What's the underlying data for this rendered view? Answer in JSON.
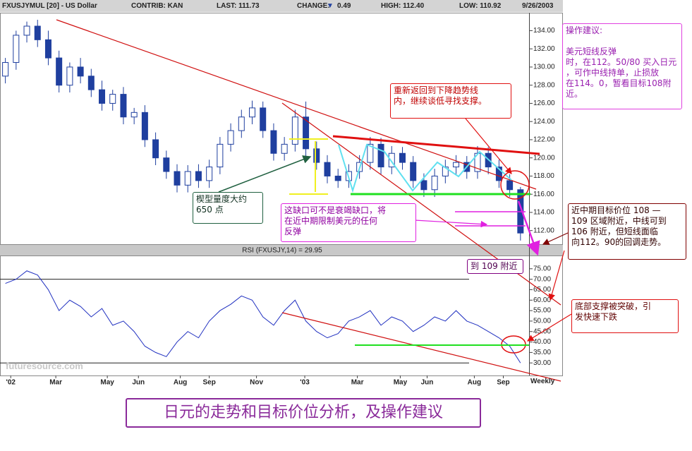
{
  "header": {
    "symbol": "FXUSJYMUL [20] - US Dollar",
    "contrib": "CONTRIB: KAN",
    "last": "LAST: 111.73",
    "change_label": "CHANGE:",
    "change_value": "0.49",
    "high": "HIGH: 112.40",
    "low": "LOW: 110.92",
    "date": "9/26/2003"
  },
  "chart_data": [
    {
      "type": "candlestick",
      "color": "#1f3f9f",
      "open": [
        129,
        130.5,
        133.5,
        134.5,
        133,
        131,
        128,
        130,
        129,
        127.5,
        126,
        127,
        124.5,
        125,
        122,
        120,
        118.5,
        117,
        118.5,
        117.5,
        119,
        121.5,
        123,
        124.5,
        125.5,
        123,
        120.5,
        121.5,
        124.5,
        121,
        119.5,
        118,
        117.5,
        118.5,
        119.5,
        121.5,
        119,
        120.5,
        119.5,
        117.5,
        116.5,
        118,
        119,
        119.5,
        118.5,
        120.5,
        119,
        117.5,
        116.5
      ],
      "high": [
        131,
        134,
        135,
        135.2,
        134,
        131.8,
        130.5,
        131,
        129.8,
        128.5,
        127.5,
        127.8,
        125.5,
        125.8,
        122.8,
        120.8,
        119.3,
        119.2,
        119.3,
        119.8,
        122.3,
        123.8,
        125.3,
        126.3,
        126.2,
        123.8,
        122.3,
        125.3,
        126.2,
        121.8,
        120.3,
        118.8,
        119.3,
        120.3,
        122.3,
        122.2,
        121.3,
        121.2,
        120.2,
        118.3,
        118.8,
        119.8,
        120.3,
        120.2,
        121.3,
        121.2,
        119.8,
        118.2,
        116.8
      ],
      "low": [
        128.2,
        129.7,
        132.7,
        132.2,
        130.2,
        127.2,
        127.2,
        128.2,
        126.7,
        125.2,
        125.2,
        123.7,
        123.7,
        121.2,
        119.2,
        117.7,
        116.2,
        116.2,
        116.7,
        116.7,
        118.2,
        120.7,
        122.2,
        123.7,
        122.2,
        119.7,
        119.7,
        120.7,
        120.2,
        118.7,
        117.2,
        116.7,
        116.7,
        117.7,
        118.7,
        118.2,
        118.2,
        118.7,
        116.7,
        115.7,
        115.7,
        117.2,
        118.2,
        117.7,
        117.7,
        118.2,
        116.7,
        115.7,
        110.9
      ],
      "close": [
        130.5,
        133.5,
        134.5,
        133,
        131,
        128,
        130,
        129,
        127.5,
        126,
        127,
        124.5,
        125,
        122,
        120,
        118.5,
        117,
        118.5,
        117.5,
        119,
        121.5,
        123,
        124.5,
        125.5,
        123,
        120.5,
        121.5,
        124.5,
        121,
        119.5,
        118,
        117.5,
        118.5,
        119.5,
        121.5,
        119,
        120.5,
        119.5,
        117.5,
        116.5,
        118,
        119,
        119.5,
        118.5,
        120.5,
        119,
        117.5,
        116.5,
        111.73
      ],
      "xlim": [
        -0.5,
        48.8
      ],
      "ylim": [
        110.5,
        135.9
      ],
      "yticks": [
        {
          "value": 112,
          "label": "112.00"
        },
        {
          "value": 114,
          "label": "114.00"
        },
        {
          "value": 116,
          "label": "116.00"
        },
        {
          "value": 118,
          "label": "118.00"
        },
        {
          "value": 120,
          "label": "120.00"
        },
        {
          "value": 122,
          "label": "122.00"
        },
        {
          "value": 124,
          "label": "124.00"
        },
        {
          "value": 126,
          "label": "126.00"
        },
        {
          "value": 128,
          "label": "128.00"
        },
        {
          "value": 130,
          "label": "130.00"
        },
        {
          "value": 132,
          "label": "132.00"
        },
        {
          "value": 134,
          "label": "134.00"
        }
      ]
    },
    {
      "type": "line",
      "title": "RSI (FXUSJY,14) = 29.95",
      "color": "#2030c0",
      "values": [
        68,
        70,
        74,
        72,
        65,
        55,
        60,
        57,
        52,
        56,
        48,
        50,
        45,
        38,
        35,
        33,
        40,
        45,
        42,
        50,
        55,
        58,
        62,
        60,
        52,
        48,
        55,
        60,
        50,
        45,
        42,
        44,
        50,
        52,
        55,
        48,
        52,
        50,
        45,
        48,
        52,
        50,
        55,
        50,
        48,
        45,
        42,
        38,
        30
      ],
      "reference_lines": [
        70,
        30
      ],
      "xlim": [
        -0.5,
        48.8
      ],
      "ylim": [
        24,
        81
      ],
      "yticks": [
        {
          "value": 30,
          "label": "30.00"
        },
        {
          "value": 35,
          "label": "35.00"
        },
        {
          "value": 40,
          "label": "40.00"
        },
        {
          "value": 45,
          "label": "45.00"
        },
        {
          "value": 50,
          "label": "50.00"
        },
        {
          "value": 55,
          "label": "55.00"
        },
        {
          "value": 60,
          "label": "60.00"
        },
        {
          "value": 65,
          "label": "65.00"
        },
        {
          "value": 70,
          "label": "70.00"
        },
        {
          "value": 75,
          "label": "75.00"
        }
      ],
      "xticks": [
        {
          "value": 0.5,
          "label": "'02"
        },
        {
          "value": 4.7,
          "label": "Mar"
        },
        {
          "value": 9.5,
          "label": "May"
        },
        {
          "value": 12.4,
          "label": "Jun"
        },
        {
          "value": 16.3,
          "label": "Aug"
        },
        {
          "value": 19,
          "label": "Sep"
        },
        {
          "value": 23.4,
          "label": "Nov"
        },
        {
          "value": 27.9,
          "label": "'03"
        },
        {
          "value": 32.8,
          "label": "Mar"
        },
        {
          "value": 36.8,
          "label": "May"
        },
        {
          "value": 39.3,
          "label": "Jun"
        },
        {
          "value": 43.7,
          "label": "Aug"
        },
        {
          "value": 46.4,
          "label": "Sep"
        }
      ]
    }
  ],
  "period_label": "Weekly",
  "watermark": "futuresource.com",
  "annotations": [
    {
      "lines": [
        "操作建议:",
        "",
        "美元短线反弹",
        "时，在112。50/80 买入日元",
        "，可作中线持单，止损放",
        "在114。0，暂看目标108附",
        "近。"
      ]
    },
    {
      "lines": [
        "重新返回到下降趋势线",
        "内，继续谈低寻找支撑。"
      ]
    },
    {
      "lines": [
        "楔型量度大约",
        "650 点"
      ]
    },
    {
      "lines": [
        "这缺口可不是衰竭缺口，将",
        "在近中期限制美元的任何",
        "反弹"
      ]
    },
    {
      "lines": [
        "近中期目标价位 108 —",
        "109 区域附近，中线可到",
        "106 附近，但短线面临",
        "向112。90的回调走势。"
      ]
    },
    {
      "lines": [
        "到 109 附近"
      ]
    },
    {
      "lines": [
        "底部支撑被突破，引",
        "发快速下跌"
      ]
    }
  ],
  "caption": "日元的走势和目标价位分析，及操作建议"
}
